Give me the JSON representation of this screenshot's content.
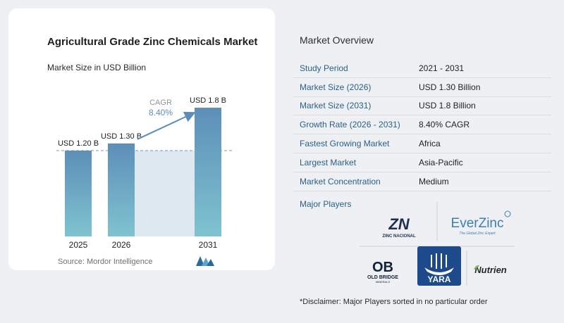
{
  "chart_data": {
    "type": "bar",
    "title": "Agricultural Grade Zinc Chemicals Market",
    "subtitle": "Market Size in USD Billion",
    "categories": [
      "2025",
      "2026",
      "2031"
    ],
    "values": [
      1.2,
      1.3,
      1.8
    ],
    "value_labels": [
      "USD 1.20 B",
      "USD 1.30 B",
      "USD 1.8 B"
    ],
    "ylim": [
      0,
      1.8
    ],
    "cagr_label": "CAGR",
    "cagr_value": "8.40%",
    "bar_color_top": "#5d8fb8",
    "bar_color_bottom": "#7fc3d0",
    "highlight_color": "#dde8f1",
    "arrow_color": "#5b8fb9"
  },
  "source": "Source: Mordor Intelligence",
  "overview": {
    "title": "Market Overview",
    "rows": [
      {
        "key": "Study Period",
        "value": "2021 - 2031"
      },
      {
        "key": "Market Size (2026)",
        "value": "USD 1.30 Billion"
      },
      {
        "key": "Market Size (2031)",
        "value": "USD 1.8 Billion"
      },
      {
        "key": "Growth Rate (2026 - 2031)",
        "value": "8.40% CAGR"
      },
      {
        "key": "Fastest Growing Market",
        "value": "Africa"
      },
      {
        "key": "Largest Market",
        "value": "Asia-Pacific"
      },
      {
        "key": "Market Concentration",
        "value": "Medium"
      }
    ]
  },
  "players": {
    "title": "Major Players",
    "zinc_nacional": {
      "mark": "ZN",
      "text": "ZINC NACIONAL"
    },
    "everzinc": {
      "mark": "EverZinc",
      "tagline": "The Global Zinc Expert"
    },
    "old_bridge": {
      "mark": "OB",
      "text": "OLD BRIDGE",
      "subtext": "MINERALS"
    },
    "yara": {
      "text": "YARA"
    },
    "nutrien": {
      "text": "Nutrien"
    }
  },
  "disclaimer": "*Disclaimer: Major Players sorted in no particular order"
}
